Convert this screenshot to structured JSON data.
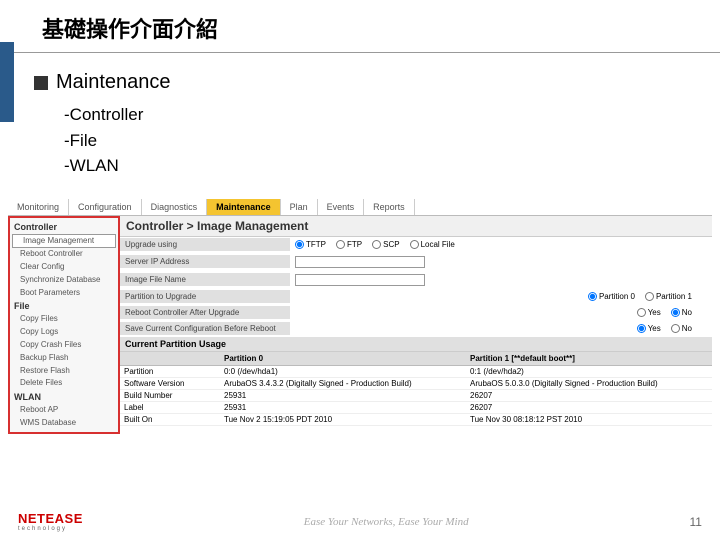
{
  "slide": {
    "title": "基礎操作介面介紹",
    "page": "11"
  },
  "section": {
    "heading": "Maintenance",
    "items": [
      "-Controller",
      "-File",
      "-WLAN"
    ]
  },
  "tabs": [
    "Monitoring",
    "Configuration",
    "Diagnostics",
    "Maintenance",
    "Plan",
    "Events",
    "Reports"
  ],
  "active_tab": "Maintenance",
  "sidebar": {
    "groups": [
      {
        "head": "Controller",
        "items": [
          "Image Management",
          "Reboot Controller",
          "Clear Config",
          "Synchronize Database",
          "Boot Parameters"
        ]
      },
      {
        "head": "File",
        "items": [
          "Copy Files",
          "Copy Logs",
          "Copy Crash Files",
          "Backup Flash",
          "Restore Flash",
          "Delete Files"
        ]
      },
      {
        "head": "WLAN",
        "items": [
          "Reboot AP",
          "WMS Database"
        ]
      }
    ],
    "selected": "Image Management"
  },
  "breadcrumb": "Controller > Image Management",
  "form": {
    "upgrade_using": {
      "label": "Upgrade using",
      "opts": [
        "TFTP",
        "FTP",
        "SCP",
        "Local File"
      ],
      "sel": "TFTP"
    },
    "server_ip": {
      "label": "Server IP Address",
      "val": ""
    },
    "image_file": {
      "label": "Image File Name",
      "val": ""
    },
    "partition": {
      "label": "Partition to Upgrade",
      "opts": [
        "Partition 0",
        "Partition 1"
      ],
      "sel": "Partition 0"
    },
    "reboot": {
      "label": "Reboot Controller After Upgrade",
      "opts": [
        "Yes",
        "No"
      ],
      "sel": "No"
    },
    "save_cfg": {
      "label": "Save Current Configuration Before Reboot",
      "opts": [
        "Yes",
        "No"
      ],
      "sel": "Yes"
    }
  },
  "usage": {
    "title": "Current Partition Usage",
    "cols": [
      "",
      "Partition 0",
      "Partition 1 [**default boot**]"
    ],
    "rows": [
      [
        "Partition",
        "0:0 (/dev/hda1)",
        "0:1 (/dev/hda2)"
      ],
      [
        "Software Version",
        "ArubaOS 3.4.3.2 (Digitally Signed - Production Build)",
        "ArubaOS 5.0.3.0 (Digitally Signed - Production Build)"
      ],
      [
        "Build Number",
        "25931",
        "26207"
      ],
      [
        "Label",
        "25931",
        "26207"
      ],
      [
        "Built On",
        "Tue Nov 2 15:19:05 PDT 2010",
        "Tue Nov 30 08:18:12 PST 2010"
      ]
    ]
  },
  "footer": {
    "logo": "NETEASE",
    "logo_sub": "technology",
    "tagline": "Ease Your Networks, Ease Your Mind"
  }
}
